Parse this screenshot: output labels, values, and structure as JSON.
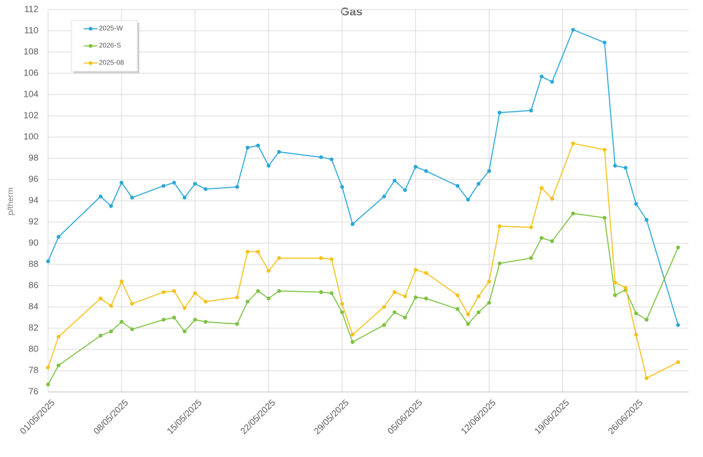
{
  "chart_data": {
    "type": "line",
    "title": "Gas",
    "y_label": "p/therm",
    "x": [
      "01/05/2025",
      "02/05/2025",
      "06/05/2025",
      "07/05/2025",
      "08/05/2025",
      "09/05/2025",
      "12/05/2025",
      "13/05/2025",
      "14/05/2025",
      "15/05/2025",
      "16/05/2025",
      "19/05/2025",
      "20/05/2025",
      "21/05/2025",
      "22/05/2025",
      "23/05/2025",
      "27/05/2025",
      "28/05/2025",
      "29/05/2025",
      "30/05/2025",
      "02/06/2025",
      "03/06/2025",
      "04/06/2025",
      "05/06/2025",
      "06/06/2025",
      "09/06/2025",
      "10/06/2025",
      "11/06/2025",
      "12/06/2025",
      "13/06/2025",
      "16/06/2025",
      "17/06/2025",
      "18/06/2025",
      "20/06/2025",
      "23/06/2025",
      "24/06/2025",
      "25/06/2025",
      "26/06/2025",
      "27/06/2025",
      "30/06/2025"
    ],
    "series": [
      {
        "name": "2025-W",
        "color": "#2aa7d8",
        "values": [
          88.3,
          90.6,
          94.4,
          93.5,
          95.7,
          94.3,
          95.4,
          95.7,
          94.3,
          95.6,
          95.1,
          95.3,
          99.0,
          99.2,
          97.3,
          98.6,
          98.1,
          97.9,
          95.3,
          91.8,
          94.4,
          95.9,
          95.0,
          97.2,
          96.8,
          95.4,
          94.1,
          95.6,
          96.8,
          102.3,
          102.5,
          105.7,
          105.2,
          110.1,
          108.9,
          97.3,
          97.1,
          93.7,
          92.2,
          82.3
        ]
      },
      {
        "name": "2026-S",
        "color": "#7dc242",
        "values": [
          76.7,
          78.5,
          81.3,
          81.7,
          82.6,
          81.9,
          82.8,
          83.0,
          81.7,
          82.8,
          82.6,
          82.4,
          84.5,
          85.5,
          84.8,
          85.5,
          85.4,
          85.3,
          83.5,
          80.7,
          82.3,
          83.5,
          83.0,
          84.9,
          84.8,
          83.8,
          82.4,
          83.5,
          84.4,
          88.1,
          88.6,
          90.5,
          90.2,
          92.8,
          92.4,
          85.1,
          85.6,
          83.4,
          82.8,
          89.6
        ]
      },
      {
        "name": "2025-08",
        "color": "#f5c11a",
        "values": [
          78.3,
          81.2,
          84.8,
          84.1,
          86.4,
          84.3,
          85.4,
          85.5,
          83.9,
          85.3,
          84.5,
          84.9,
          89.2,
          89.2,
          87.4,
          88.6,
          88.6,
          88.5,
          84.3,
          81.4,
          84.0,
          85.4,
          85.0,
          87.5,
          87.2,
          85.1,
          83.3,
          85.0,
          86.4,
          91.6,
          91.5,
          95.2,
          94.2,
          99.4,
          98.8,
          86.3,
          85.8,
          81.4,
          77.3,
          78.8
        ]
      }
    ],
    "xlim": [
      "01/05/2025",
      "01/07/2025"
    ],
    "xticks": [
      "01/05/2025",
      "08/05/2025",
      "15/05/2025",
      "22/05/2025",
      "29/05/2025",
      "05/06/2025",
      "12/06/2025",
      "19/06/2025",
      "26/06/2025"
    ],
    "ylim": [
      76,
      112
    ],
    "yticks": [
      76,
      78,
      80,
      82,
      84,
      86,
      88,
      90,
      92,
      94,
      96,
      98,
      100,
      102,
      104,
      106,
      108,
      110,
      112
    ],
    "grid": true,
    "legend": "top-left"
  }
}
